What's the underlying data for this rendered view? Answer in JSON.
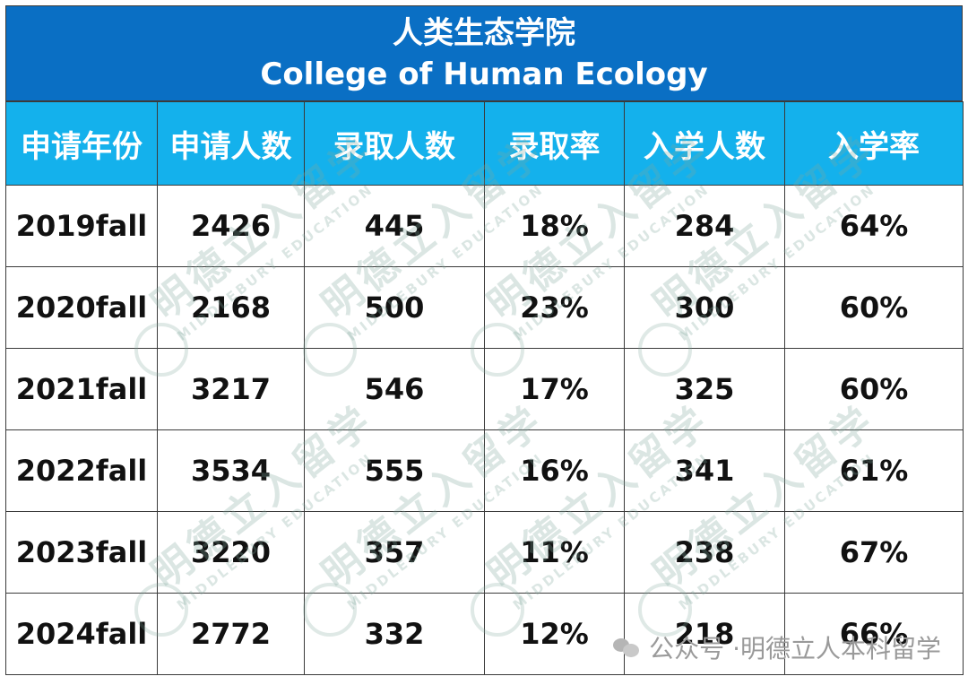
{
  "title": {
    "cn": "人类生态学院",
    "en": "College of Human Ecology"
  },
  "footer": {
    "account_prefix": "公众号 · ",
    "account_name": "明德立人本科留学"
  },
  "colors": {
    "title_bg": "#0a6fc4",
    "header_bg": "#14b1ec",
    "border": "#3a3a3a"
  },
  "chart_data": {
    "type": "table",
    "columns": [
      "申请年份",
      "申请人数",
      "录取人数",
      "录取率",
      "入学人数",
      "入学率"
    ],
    "rows": [
      [
        "2019fall",
        "2426",
        "445",
        "18%",
        "284",
        "64%"
      ],
      [
        "2020fall",
        "2168",
        "500",
        "23%",
        "300",
        "60%"
      ],
      [
        "2021fall",
        "3217",
        "546",
        "17%",
        "325",
        "60%"
      ],
      [
        "2022fall",
        "3534",
        "555",
        "16%",
        "341",
        "61%"
      ],
      [
        "2023fall",
        "3220",
        "357",
        "11%",
        "238",
        "67%"
      ],
      [
        "2024fall",
        "2772",
        "332",
        "12%",
        "218",
        "66%"
      ]
    ]
  },
  "watermark": {
    "cn": "明德立入留学",
    "en": "MIDDLEBURY EDUCATION"
  }
}
